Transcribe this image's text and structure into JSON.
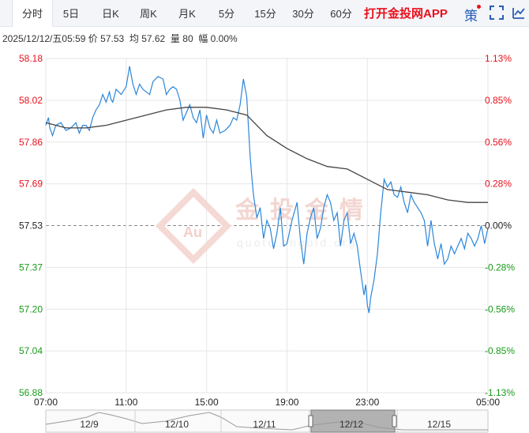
{
  "tabs": [
    {
      "label": "分时",
      "active": true
    },
    {
      "label": "5日",
      "active": false
    },
    {
      "label": "日K",
      "active": false
    },
    {
      "label": "周K",
      "active": false
    },
    {
      "label": "月K",
      "active": false
    },
    {
      "label": "5分",
      "active": false
    },
    {
      "label": "15分",
      "active": false
    },
    {
      "label": "30分",
      "active": false
    },
    {
      "label": "60分",
      "active": false
    }
  ],
  "app_link": "打开金投网APP",
  "strategy_label": "策",
  "info": {
    "datetime": "2025/12/12/五05:59",
    "price_label": "价",
    "price": "57.53",
    "high_label": "均",
    "avg": "57.62",
    "volume_label": "量",
    "volume": "80",
    "change_label": "幅",
    "change": "0.00%"
  },
  "watermark": {
    "cn": "金投金情",
    "en": "quote.cngold.org",
    "logo": "Au"
  },
  "colors": {
    "up": "#e8101c",
    "down": "#1a9a1a",
    "price_line": "#2b86d9",
    "avg_line": "#444444",
    "base_line": "#888888",
    "tab_bg": "#f3f5f9"
  },
  "chart_data": {
    "type": "line",
    "title": "",
    "ylim": [
      56.88,
      58.18
    ],
    "base_price": 57.53,
    "y_left_ticks": [
      "58.18",
      "58.02",
      "57.86",
      "57.69",
      "57.53",
      "57.37",
      "57.20",
      "57.04",
      "56.88"
    ],
    "y_left_tick_colors": [
      "up",
      "up",
      "up",
      "up",
      "neutral",
      "down",
      "down",
      "down",
      "down"
    ],
    "y_right_ticks": [
      "1.13%",
      "0.85%",
      "0.56%",
      "0.28%",
      "0.00%",
      "-0.28%",
      "-0.56%",
      "-0.85%",
      "-1.13%"
    ],
    "x_ticks": [
      "07:00",
      "11:00",
      "15:00",
      "19:00",
      "23:00",
      "05:00"
    ],
    "x_tick_values": [
      0,
      240,
      480,
      720,
      960,
      1320
    ],
    "x_range": [
      0,
      1320
    ],
    "x_unit": "minutes since 07:00",
    "grid": true,
    "series": [
      {
        "name": "",
        "role": "price",
        "x": [
          0,
          8,
          12,
          20,
          30,
          45,
          60,
          75,
          90,
          100,
          110,
          120,
          130,
          140,
          150,
          160,
          170,
          180,
          190,
          195,
          200,
          210,
          225,
          240,
          250,
          260,
          270,
          280,
          290,
          300,
          310,
          320,
          335,
          350,
          360,
          370,
          380,
          390,
          400,
          410,
          420,
          430,
          440,
          450,
          460,
          470,
          480,
          490,
          500,
          510,
          520,
          535,
          550,
          560,
          570,
          580,
          590,
          600,
          610,
          615,
          620,
          630,
          640,
          650,
          660,
          670,
          680,
          690,
          700,
          710,
          720,
          735,
          750,
          760,
          770,
          780,
          790,
          800,
          810,
          820,
          830,
          840,
          850,
          860,
          870,
          880,
          890,
          900,
          910,
          920,
          930,
          940,
          950,
          955,
          960,
          965,
          970,
          980,
          990,
          1000,
          1010,
          1020,
          1030,
          1040,
          1050,
          1060,
          1070,
          1080,
          1090,
          1100,
          1110,
          1120,
          1130,
          1140,
          1150,
          1160,
          1170,
          1180,
          1190,
          1200,
          1210,
          1220,
          1230,
          1240,
          1250,
          1260,
          1270,
          1280,
          1290,
          1300,
          1310,
          1320
        ],
        "values": [
          57.92,
          57.95,
          57.91,
          57.88,
          57.92,
          57.93,
          57.9,
          57.91,
          57.93,
          57.89,
          57.92,
          57.92,
          57.9,
          57.95,
          57.98,
          58.0,
          58.04,
          58.01,
          58.05,
          58.02,
          58.01,
          58.06,
          58.04,
          58.07,
          58.15,
          58.08,
          58.04,
          58.08,
          58.06,
          58.05,
          58.04,
          58.09,
          58.11,
          58.1,
          58.04,
          58.06,
          58.07,
          58.06,
          58.02,
          57.94,
          57.97,
          58.0,
          57.95,
          57.93,
          57.98,
          57.87,
          57.96,
          57.91,
          57.89,
          57.94,
          57.89,
          57.9,
          57.92,
          57.95,
          57.94,
          58.0,
          58.1,
          58.03,
          57.8,
          57.72,
          57.65,
          57.56,
          57.6,
          57.48,
          57.55,
          57.52,
          57.44,
          57.5,
          57.6,
          57.45,
          57.46,
          57.55,
          57.62,
          57.48,
          57.38,
          57.5,
          57.56,
          57.6,
          57.48,
          57.52,
          57.6,
          57.65,
          57.62,
          57.55,
          57.58,
          57.45,
          57.55,
          57.58,
          57.46,
          57.5,
          57.45,
          57.35,
          57.26,
          57.3,
          57.22,
          57.19,
          57.25,
          57.32,
          57.42,
          57.58,
          57.71,
          57.68,
          57.7,
          57.65,
          57.64,
          57.68,
          57.62,
          57.58,
          57.65,
          57.62,
          57.6,
          57.58,
          57.55,
          57.45,
          57.55,
          57.46,
          57.4,
          57.46,
          57.38,
          57.4,
          57.45,
          57.42,
          57.45,
          57.48,
          57.44,
          57.5,
          57.48,
          57.45,
          57.48,
          57.53,
          57.46,
          57.52
        ]
      },
      {
        "name": "",
        "role": "average",
        "x": [
          0,
          60,
          120,
          180,
          240,
          300,
          360,
          420,
          480,
          540,
          600,
          660,
          720,
          780,
          840,
          900,
          960,
          1020,
          1080,
          1140,
          1200,
          1260,
          1320
        ],
        "values": [
          57.93,
          57.91,
          57.91,
          57.92,
          57.94,
          57.96,
          57.98,
          57.99,
          57.99,
          57.98,
          57.96,
          57.88,
          57.83,
          57.79,
          57.76,
          57.75,
          57.71,
          57.67,
          57.66,
          57.65,
          57.63,
          57.62,
          57.62
        ]
      }
    ],
    "bottom_navigator": {
      "dates": [
        "12/9",
        "12/10",
        "12/11",
        "12/12",
        "12/15"
      ],
      "selected": "12/12"
    }
  }
}
